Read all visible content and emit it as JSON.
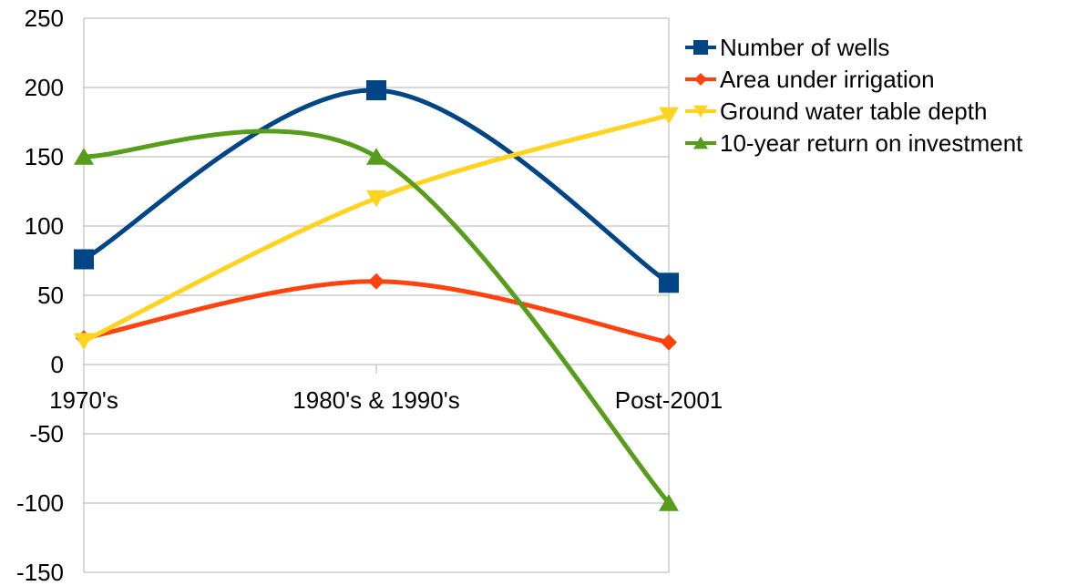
{
  "chart_data": {
    "type": "line",
    "smooth": true,
    "categories": [
      "1970's",
      "1980's & 1990's",
      "Post-2001"
    ],
    "ylim": [
      -150,
      250
    ],
    "y_ticks": [
      250,
      200,
      150,
      100,
      50,
      0,
      -50,
      -100,
      -150
    ],
    "grid": true,
    "legend_position": "right",
    "series": [
      {
        "name": "Number of wells",
        "values": [
          76,
          198,
          59
        ],
        "color": "#004586",
        "marker": "square"
      },
      {
        "name": "Area under irrigation",
        "values": [
          19,
          60,
          16
        ],
        "color": "#ff420e",
        "marker": "diamond"
      },
      {
        "name": "Ground water table depth",
        "values": [
          17,
          120,
          180
        ],
        "color": "#ffd320",
        "marker": "triangle-down"
      },
      {
        "name": "10-year return on investment",
        "values": [
          150,
          150,
          -100
        ],
        "color": "#579d1c",
        "marker": "triangle-up"
      }
    ]
  }
}
